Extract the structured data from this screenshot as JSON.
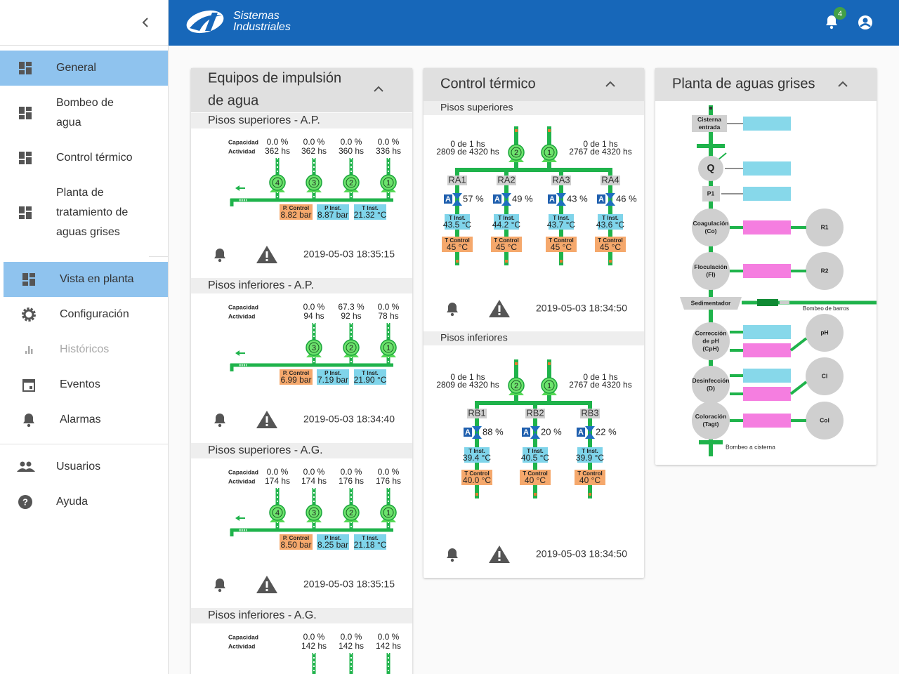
{
  "header": {
    "brand": [
      "Sistemas",
      "Industriales"
    ],
    "notifications": "4"
  },
  "sidebar": {
    "items": [
      {
        "label": [
          "General"
        ],
        "active": true
      },
      {
        "label": [
          "Bombeo de",
          "agua"
        ]
      },
      {
        "label": [
          "Control térmico"
        ]
      },
      {
        "label": [
          "Planta de",
          "tratamiento de",
          "aguas grises"
        ]
      },
      {
        "label": [
          "Vista en planta"
        ],
        "active": true
      },
      {
        "label": [
          "Configuración"
        ]
      },
      {
        "label": [
          "Históricos"
        ],
        "muted": true
      },
      {
        "label": [
          "Eventos"
        ]
      },
      {
        "label": [
          "Alarmas"
        ]
      },
      {
        "label": [
          "Usuarios"
        ]
      },
      {
        "label": [
          "Ayuda"
        ]
      }
    ]
  },
  "cards": {
    "pumping": {
      "title": [
        "Equipos de impulsión",
        "de agua"
      ],
      "sections": [
        {
          "title": "Pisos superiores - A.P.",
          "labels": [
            "Capacidad",
            "Actividad"
          ],
          "pumps": [
            {
              "id": "4",
              "capacity": "0.0 %",
              "activity": "362 hs"
            },
            {
              "id": "3",
              "capacity": "0.0 %",
              "activity": "362 hs"
            },
            {
              "id": "2",
              "capacity": "0.0 %",
              "activity": "360 hs"
            },
            {
              "id": "1",
              "capacity": "0.0 %",
              "activity": "336 hs"
            }
          ],
          "readings": [
            {
              "label": "P. Control",
              "value": "8.82 bar"
            },
            {
              "label": "P Inst.",
              "value": "8.87 bar"
            },
            {
              "label": "T Inst.",
              "value": "21.32 °C"
            }
          ],
          "timestamp": "2019-05-03 18:35:15"
        },
        {
          "title": "Pisos inferiores - A.P.",
          "labels": [
            "Capacidad",
            "Actividad"
          ],
          "pumps": [
            {
              "id": "3",
              "capacity": "0.0 %",
              "activity": "94 hs"
            },
            {
              "id": "2",
              "capacity": "67.3 %",
              "activity": "92 hs"
            },
            {
              "id": "1",
              "capacity": "0.0 %",
              "activity": "78 hs"
            }
          ],
          "readings": [
            {
              "label": "P. Control",
              "value": "6.99 bar"
            },
            {
              "label": "P Inst.",
              "value": "7.19 bar"
            },
            {
              "label": "T Inst.",
              "value": "21.90 °C"
            }
          ],
          "timestamp": "2019-05-03 18:34:40"
        },
        {
          "title": "Pisos superiores - A.G.",
          "labels": [
            "Capacidad",
            "Actividad"
          ],
          "pumps": [
            {
              "id": "4",
              "capacity": "0.0 %",
              "activity": "174 hs"
            },
            {
              "id": "3",
              "capacity": "0.0 %",
              "activity": "174 hs"
            },
            {
              "id": "2",
              "capacity": "0.0 %",
              "activity": "176 hs"
            },
            {
              "id": "1",
              "capacity": "0.0 %",
              "activity": "176 hs"
            }
          ],
          "readings": [
            {
              "label": "P. Control",
              "value": "8.50 bar"
            },
            {
              "label": "P Inst.",
              "value": "8.25 bar"
            },
            {
              "label": "T Inst.",
              "value": "21.18 °C"
            }
          ],
          "timestamp": "2019-05-03 18:35:15"
        },
        {
          "title": "Pisos inferiores - A.G.",
          "labels": [
            "Capacidad",
            "Actividad"
          ],
          "pumps": [
            {
              "capacity": "0.0 %",
              "activity": "142 hs"
            },
            {
              "capacity": "0.0 %",
              "activity": "142 hs"
            },
            {
              "capacity": "0.0 %",
              "activity": "142 hs"
            }
          ]
        }
      ]
    },
    "thermal": {
      "title": "Control térmico",
      "sections": [
        {
          "title": "Pisos superiores",
          "pumps": [
            {
              "id": "2",
              "lines": [
                "0 de 1 hs",
                "2809 de 4320 hs"
              ]
            },
            {
              "id": "1",
              "lines": [
                "0 de 1 hs",
                "2767 de 4320 hs"
              ]
            }
          ],
          "units": [
            {
              "name": "RA1",
              "mode": "A",
              "opening": "57 %",
              "t_inst_label": "T Inst.",
              "t_inst": "43.5 °C",
              "t_control_label": "T Control",
              "t_control": "45 °C"
            },
            {
              "name": "RA2",
              "mode": "A",
              "opening": "49 %",
              "t_inst_label": "T Inst.",
              "t_inst": "44.2 °C",
              "t_control_label": "T Control",
              "t_control": "45 °C"
            },
            {
              "name": "RA3",
              "mode": "A",
              "opening": "43 %",
              "t_inst_label": "T Inst.",
              "t_inst": "43.7 °C",
              "t_control_label": "T Control",
              "t_control": "45 °C"
            },
            {
              "name": "RA4",
              "mode": "A",
              "opening": "46 %",
              "t_inst_label": "T Inst.",
              "t_inst": "43.6 °C",
              "t_control_label": "T Control",
              "t_control": "45 °C"
            }
          ],
          "timestamp": "2019-05-03 18:34:50"
        },
        {
          "title": "Pisos inferiores",
          "pumps": [
            {
              "id": "2",
              "lines": [
                "0 de 1 hs",
                "2809 de 4320 hs"
              ]
            },
            {
              "id": "1",
              "lines": [
                "0 de 1 hs",
                "2767 de 4320 hs"
              ]
            }
          ],
          "units": [
            {
              "name": "RB1",
              "mode": "A",
              "opening": "88 %",
              "t_inst_label": "T Inst.",
              "t_inst": "39.4 °C",
              "t_control_label": "T Control",
              "t_control": "40.0 °C"
            },
            {
              "name": "RB2",
              "mode": "A",
              "opening": "20 %",
              "t_inst_label": "T Inst.",
              "t_inst": "40.5 °C",
              "t_control_label": "T Control",
              "t_control": "40 °C"
            },
            {
              "name": "RB3",
              "mode": "A",
              "opening": "22 %",
              "t_inst_label": "T Inst.",
              "t_inst": "39.9 °C",
              "t_control_label": "T Control",
              "t_control": "40 °C"
            }
          ],
          "timestamp": "2019-05-03 18:34:50"
        }
      ]
    },
    "graywater": {
      "title": "Planta de aguas grises",
      "nodes": [
        {
          "label": [
            "Cisterna",
            "entrada"
          ]
        },
        {
          "label": [
            "Q"
          ]
        },
        {
          "label": [
            "P1"
          ]
        },
        {
          "label": [
            "Coagulación",
            "(Co)"
          ]
        },
        {
          "label": [
            "R1"
          ]
        },
        {
          "label": [
            "Floculación",
            "(Fl)"
          ]
        },
        {
          "label": [
            "R2"
          ]
        },
        {
          "label": [
            "Sedimentador"
          ]
        },
        {
          "label": [
            "Bombeo de barros"
          ]
        },
        {
          "label": [
            "Corrección",
            "de pH",
            "(CpH)"
          ]
        },
        {
          "label": [
            "pH"
          ]
        },
        {
          "label": [
            "Desinfección",
            "(D)"
          ]
        },
        {
          "label": [
            "Cl"
          ]
        },
        {
          "label": [
            "Coloración",
            "(Tagt)"
          ]
        },
        {
          "label": [
            "Col"
          ]
        },
        {
          "label": [
            "Bombeo a cisterna"
          ]
        }
      ]
    }
  }
}
